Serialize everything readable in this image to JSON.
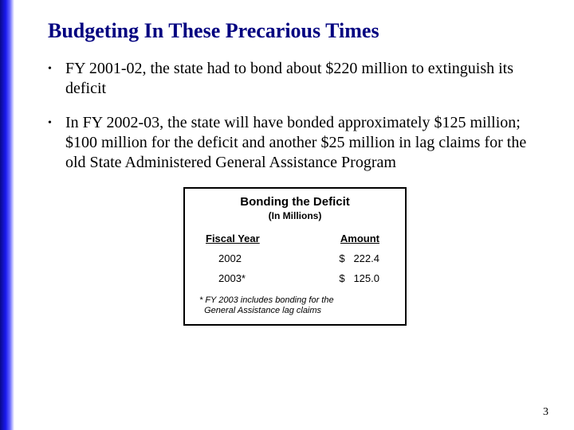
{
  "slide": {
    "title": "Budgeting In These Precarious Times",
    "bullets": [
      "FY 2001-02, the state had to bond about $220 million to extinguish its deficit",
      "In FY 2002-03, the state will have bonded approximately $125 million; $100 million for the deficit and another $25 million in lag claims for the old State Administered General Assistance Program"
    ],
    "page_number": "3"
  },
  "table": {
    "title": "Bonding the Deficit",
    "subtitle": "(In Millions)",
    "columns": [
      "Fiscal Year",
      "Amount"
    ],
    "rows": [
      {
        "year": "2002",
        "amount": "$   222.4"
      },
      {
        "year": "2003*",
        "amount": "$   125.0"
      }
    ],
    "note_line1": "* FY 2003 includes bonding for the",
    "note_line2": "  General Assistance lag claims",
    "border_color": "#000000",
    "background_color": "#ffffff",
    "font_family": "Arial",
    "title_fontsize": 15,
    "header_fontsize": 13,
    "row_fontsize": 13,
    "note_fontsize": 11
  },
  "styling": {
    "title_color": "#000080",
    "body_color": "#000000",
    "left_bar_gradient": [
      "#0a0a8a",
      "#1a1aee",
      "#6a6aff",
      "#d0d0ff",
      "#ffffff"
    ]
  }
}
